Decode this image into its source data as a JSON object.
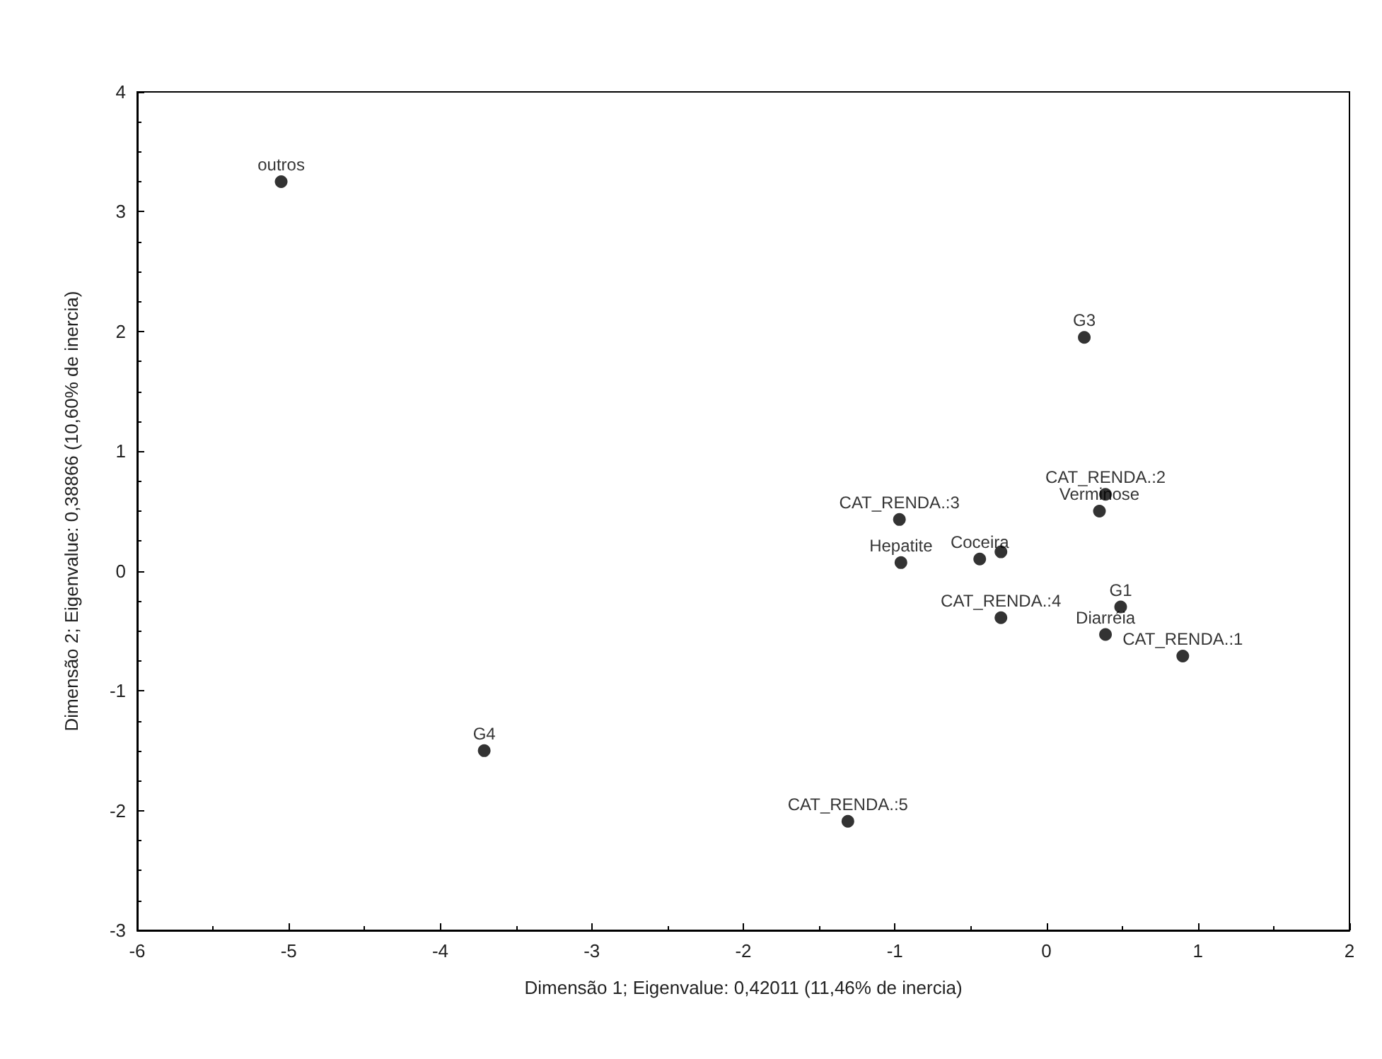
{
  "chart_data": {
    "type": "scatter",
    "xlabel": "Dimensão 1; Eigenvalue: 0,42011 (11,46% de inercia)",
    "ylabel": "Dimensão 2; Eigenvalue: 0,38866 (10,60% de inercia)",
    "x": [
      -5.05,
      0.25,
      -3.71,
      -1.31,
      0.39,
      0.35,
      -0.97,
      -0.96,
      -0.44,
      -0.3,
      -0.3,
      0.49,
      0.39,
      0.9
    ],
    "values": [
      3.25,
      1.95,
      -1.5,
      -2.09,
      0.64,
      0.5,
      0.43,
      0.07,
      0.1,
      0.16,
      -0.39,
      -0.3,
      -0.53,
      -0.71
    ],
    "color": "#000000",
    "marker": "circle",
    "grid": false,
    "xlim": [
      -6,
      2
    ],
    "xticks": [
      -6,
      -5,
      -4,
      -3,
      -2,
      -1,
      0,
      1,
      2
    ],
    "ylim": [
      -3,
      4
    ],
    "yticks": [
      -3,
      -2,
      -1,
      0,
      1,
      2,
      3,
      4
    ],
    "annotations": [
      {
        "text": "outros",
        "x": -5.05,
        "y": 3.25
      },
      {
        "text": "G3",
        "x": 0.25,
        "y": 1.95
      },
      {
        "text": "G4",
        "x": -3.71,
        "y": -1.5
      },
      {
        "text": "CAT_RENDA.:5",
        "x": -1.31,
        "y": -2.09
      },
      {
        "text": "CAT_RENDA.:2",
        "x": 0.39,
        "y": 0.64
      },
      {
        "text": "Verminose",
        "x": 0.35,
        "y": 0.5
      },
      {
        "text": "CAT_RENDA.:3",
        "x": -0.97,
        "y": 0.43
      },
      {
        "text": "Hepatite",
        "x": -0.96,
        "y": 0.07
      },
      {
        "text": "Coceira",
        "x": -0.44,
        "y": 0.1
      },
      {
        "text": "CAT_RENDA.:4",
        "x": -0.3,
        "y": -0.39
      },
      {
        "text": "G1",
        "x": 0.49,
        "y": -0.3
      },
      {
        "text": "Diarréia",
        "x": 0.39,
        "y": -0.53
      },
      {
        "text": "CAT_RENDA.:1",
        "x": 0.9,
        "y": -0.71
      }
    ]
  }
}
